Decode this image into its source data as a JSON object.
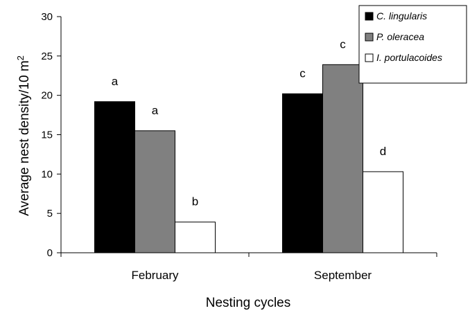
{
  "chart_data": {
    "type": "bar",
    "categories": [
      "February",
      "September"
    ],
    "series": [
      {
        "name": "C. lingularis",
        "values": [
          19.2,
          20.2
        ],
        "color": "#000000",
        "labels": [
          "a",
          "c"
        ]
      },
      {
        "name": "P. oleracea",
        "values": [
          15.5,
          23.9
        ],
        "color": "#808080",
        "labels": [
          "a",
          "c"
        ]
      },
      {
        "name": "I. portulacoides",
        "values": [
          3.9,
          10.3
        ],
        "color": "#ffffff",
        "labels": [
          "b",
          "d"
        ]
      }
    ],
    "xlabel": "Nesting cycles",
    "ylabel": "Average nest density/10 m",
    "ylabel_superscript": "2",
    "ylim": [
      0,
      30
    ],
    "yticks": [
      0,
      5,
      10,
      15,
      20,
      25,
      30
    ],
    "grid": false,
    "legend_position": "top-right"
  }
}
